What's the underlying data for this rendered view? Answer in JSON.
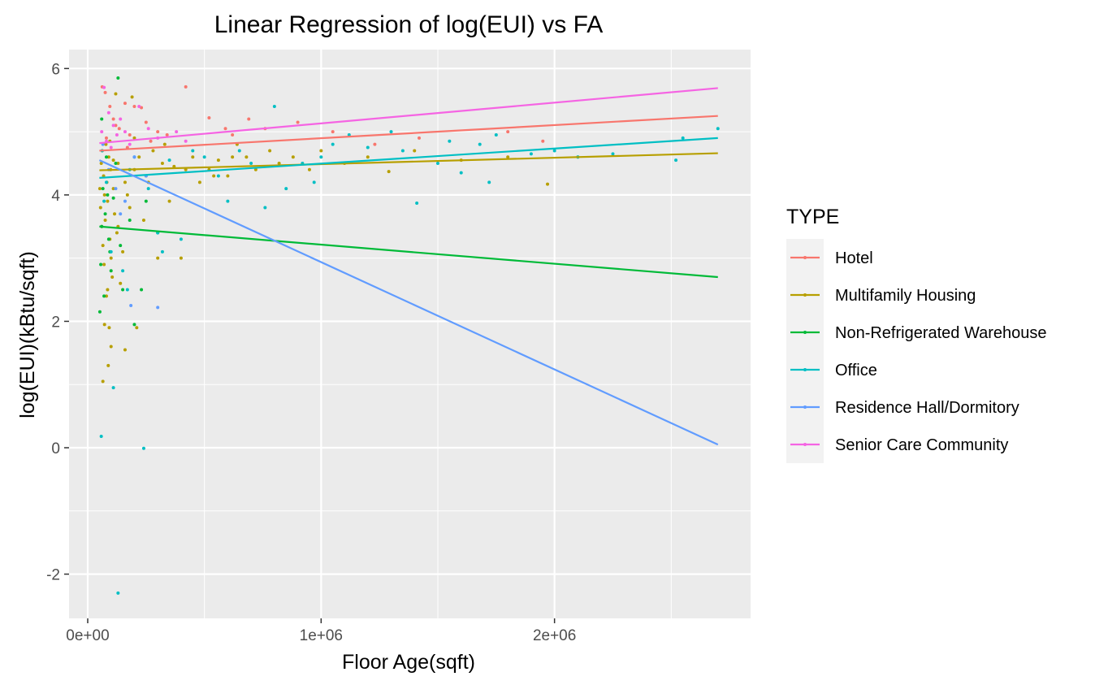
{
  "chart_data": {
    "type": "scatter",
    "title": "Linear Regression of log(EUI) vs FA",
    "xlabel": "Floor Age(sqft)",
    "ylabel": "log(EUI)(kBtu/sqft)",
    "xlim": [
      -80000,
      2840000
    ],
    "ylim": [
      -2.7,
      6.3
    ],
    "x_ticks": [
      {
        "value": 0,
        "label": "0e+00"
      },
      {
        "value": 1000000,
        "label": "1e+06"
      },
      {
        "value": 2000000,
        "label": "2e+06"
      }
    ],
    "y_ticks": [
      {
        "value": -2,
        "label": "-2"
      },
      {
        "value": 0,
        "label": "0"
      },
      {
        "value": 2,
        "label": "2"
      },
      {
        "value": 4,
        "label": "4"
      },
      {
        "value": 6,
        "label": "6"
      }
    ],
    "grid": true,
    "legend": {
      "title": "TYPE",
      "position": "right"
    },
    "series": [
      {
        "name": "Hotel",
        "color": "#F8766D",
        "fit": {
          "x0": 50000,
          "y0": 4.7,
          "x1": 2700000,
          "y1": 5.25
        },
        "points": [
          [
            62000,
            5.71
          ],
          [
            75000,
            5.62
          ],
          [
            95000,
            5.4
          ],
          [
            110000,
            5.2
          ],
          [
            135000,
            5.05
          ],
          [
            160000,
            5.45
          ],
          [
            200000,
            5.4
          ],
          [
            230000,
            5.38
          ],
          [
            180000,
            4.95
          ],
          [
            250000,
            5.15
          ],
          [
            300000,
            5.0
          ],
          [
            340000,
            4.95
          ],
          [
            420000,
            5.71
          ],
          [
            520000,
            5.22
          ],
          [
            590000,
            5.05
          ],
          [
            620000,
            4.95
          ],
          [
            690000,
            5.2
          ],
          [
            760000,
            5.05
          ],
          [
            900000,
            5.15
          ],
          [
            1050000,
            5.0
          ],
          [
            1230000,
            4.8
          ],
          [
            1420000,
            4.9
          ],
          [
            1800000,
            5.0
          ],
          [
            1950000,
            4.85
          ],
          [
            80000,
            4.9
          ],
          [
            120000,
            5.1
          ],
          [
            170000,
            4.75
          ],
          [
            270000,
            4.85
          ]
        ]
      },
      {
        "name": "Multifamily Housing",
        "color": "#B79F00",
        "fit": {
          "x0": 50000,
          "y0": 4.39,
          "x1": 2700000,
          "y1": 4.66
        },
        "points": [
          [
            52000,
            4.1
          ],
          [
            55000,
            3.8
          ],
          [
            58000,
            4.5
          ],
          [
            60000,
            3.5
          ],
          [
            62000,
            4.7
          ],
          [
            65000,
            3.2
          ],
          [
            68000,
            4.3
          ],
          [
            70000,
            2.9
          ],
          [
            72000,
            4.0
          ],
          [
            75000,
            3.6
          ],
          [
            78000,
            4.8
          ],
          [
            80000,
            2.4
          ],
          [
            82000,
            4.2
          ],
          [
            85000,
            3.9
          ],
          [
            88000,
            1.3
          ],
          [
            90000,
            4.6
          ],
          [
            92000,
            1.9
          ],
          [
            95000,
            3.3
          ],
          [
            98000,
            4.4
          ],
          [
            100000,
            1.6
          ],
          [
            105000,
            2.7
          ],
          [
            110000,
            4.1
          ],
          [
            115000,
            3.7
          ],
          [
            120000,
            5.6
          ],
          [
            125000,
            3.4
          ],
          [
            130000,
            4.5
          ],
          [
            140000,
            2.6
          ],
          [
            150000,
            3.1
          ],
          [
            160000,
            1.55
          ],
          [
            170000,
            4.0
          ],
          [
            180000,
            3.8
          ],
          [
            190000,
            5.55
          ],
          [
            200000,
            4.4
          ],
          [
            210000,
            1.9
          ],
          [
            220000,
            4.6
          ],
          [
            240000,
            3.6
          ],
          [
            250000,
            4.3
          ],
          [
            280000,
            4.7
          ],
          [
            300000,
            3.0
          ],
          [
            320000,
            4.5
          ],
          [
            350000,
            3.9
          ],
          [
            400000,
            3.0
          ],
          [
            420000,
            4.4
          ],
          [
            450000,
            4.6
          ],
          [
            480000,
            4.2
          ],
          [
            520000,
            4.4
          ],
          [
            560000,
            4.55
          ],
          [
            600000,
            4.3
          ],
          [
            640000,
            4.8
          ],
          [
            680000,
            4.6
          ],
          [
            720000,
            4.4
          ],
          [
            780000,
            4.7
          ],
          [
            820000,
            4.5
          ],
          [
            880000,
            4.6
          ],
          [
            950000,
            4.4
          ],
          [
            1000000,
            4.7
          ],
          [
            1100000,
            4.5
          ],
          [
            1200000,
            4.6
          ],
          [
            1290000,
            4.37
          ],
          [
            1400000,
            4.7
          ],
          [
            1600000,
            4.55
          ],
          [
            1800000,
            4.6
          ],
          [
            1970000,
            4.17
          ],
          [
            2100000,
            4.6
          ],
          [
            65000,
            1.05
          ],
          [
            72000,
            1.95
          ],
          [
            85000,
            2.5
          ],
          [
            100000,
            3.0
          ],
          [
            130000,
            3.5
          ],
          [
            200000,
            4.9
          ],
          [
            260000,
            4.2
          ],
          [
            330000,
            4.8
          ],
          [
            370000,
            4.45
          ],
          [
            540000,
            4.3
          ],
          [
            620000,
            4.6
          ],
          [
            160000,
            4.2
          ],
          [
            95000,
            4.85
          ],
          [
            110000,
            4.55
          ]
        ]
      },
      {
        "name": "Non-Refrigerated Warehouse",
        "color": "#00BA38",
        "fit": {
          "x0": 50000,
          "y0": 3.5,
          "x1": 2700000,
          "y1": 2.7
        },
        "points": [
          [
            52000,
            2.15
          ],
          [
            56000,
            2.9
          ],
          [
            60000,
            3.5
          ],
          [
            65000,
            4.1
          ],
          [
            70000,
            2.4
          ],
          [
            75000,
            3.7
          ],
          [
            80000,
            4.6
          ],
          [
            90000,
            3.3
          ],
          [
            100000,
            2.8
          ],
          [
            110000,
            3.95
          ],
          [
            120000,
            4.5
          ],
          [
            130000,
            5.85
          ],
          [
            140000,
            3.2
          ],
          [
            150000,
            2.5
          ],
          [
            180000,
            3.6
          ],
          [
            200000,
            1.95
          ],
          [
            230000,
            2.5
          ],
          [
            250000,
            3.9
          ],
          [
            300000,
            3.4
          ],
          [
            60000,
            5.2
          ],
          [
            85000,
            4.0
          ],
          [
            95000,
            3.1
          ]
        ]
      },
      {
        "name": "Office",
        "color": "#00BFC4",
        "fit": {
          "x0": 50000,
          "y0": 4.27,
          "x1": 2700000,
          "y1": 4.9
        },
        "points": [
          [
            58000,
            0.18
          ],
          [
            62000,
            4.7
          ],
          [
            70000,
            3.9
          ],
          [
            80000,
            4.2
          ],
          [
            100000,
            3.1
          ],
          [
            110000,
            0.95
          ],
          [
            130000,
            -2.3
          ],
          [
            150000,
            2.8
          ],
          [
            170000,
            2.5
          ],
          [
            200000,
            4.6
          ],
          [
            240000,
            -0.01
          ],
          [
            300000,
            3.4
          ],
          [
            320000,
            3.1
          ],
          [
            400000,
            3.3
          ],
          [
            450000,
            4.7
          ],
          [
            500000,
            4.6
          ],
          [
            560000,
            4.3
          ],
          [
            600000,
            3.9
          ],
          [
            650000,
            4.7
          ],
          [
            700000,
            4.5
          ],
          [
            760000,
            3.8
          ],
          [
            800000,
            5.4
          ],
          [
            850000,
            4.1
          ],
          [
            920000,
            4.5
          ],
          [
            970000,
            4.2
          ],
          [
            1000000,
            4.6
          ],
          [
            1050000,
            4.8
          ],
          [
            1120000,
            4.95
          ],
          [
            1200000,
            4.75
          ],
          [
            1300000,
            5.0
          ],
          [
            1350000,
            4.7
          ],
          [
            1410000,
            3.87
          ],
          [
            1500000,
            4.5
          ],
          [
            1600000,
            4.35
          ],
          [
            1680000,
            4.8
          ],
          [
            1720000,
            4.2
          ],
          [
            1900000,
            4.65
          ],
          [
            2100000,
            4.6
          ],
          [
            2250000,
            4.65
          ],
          [
            2520000,
            4.55
          ],
          [
            2550000,
            4.9
          ],
          [
            2700000,
            5.05
          ],
          [
            1550000,
            4.85
          ],
          [
            1750000,
            4.95
          ],
          [
            2000000,
            4.7
          ],
          [
            180000,
            4.4
          ],
          [
            260000,
            4.1
          ],
          [
            350000,
            4.55
          ]
        ]
      },
      {
        "name": "Residence Hall/Dormitory",
        "color": "#619CFF",
        "fit": {
          "x0": 50000,
          "y0": 4.55,
          "x1": 2700000,
          "y1": 0.05
        },
        "points": [
          [
            65000,
            4.8
          ],
          [
            90000,
            4.4
          ],
          [
            120000,
            4.1
          ],
          [
            160000,
            3.9
          ],
          [
            185000,
            2.25
          ],
          [
            200000,
            4.6
          ],
          [
            300000,
            2.22
          ],
          [
            250000,
            4.3
          ],
          [
            140000,
            3.7
          ]
        ]
      },
      {
        "name": "Senior Care Community",
        "color": "#F564E3",
        "fit": {
          "x0": 50000,
          "y0": 4.82,
          "x1": 2700000,
          "y1": 5.69
        },
        "points": [
          [
            60000,
            5.0
          ],
          [
            70000,
            5.7
          ],
          [
            80000,
            4.85
          ],
          [
            90000,
            5.3
          ],
          [
            100000,
            4.75
          ],
          [
            110000,
            5.1
          ],
          [
            125000,
            4.95
          ],
          [
            140000,
            5.2
          ],
          [
            160000,
            5.0
          ],
          [
            180000,
            4.8
          ],
          [
            220000,
            5.4
          ],
          [
            260000,
            5.05
          ],
          [
            300000,
            4.9
          ],
          [
            380000,
            5.0
          ],
          [
            420000,
            4.85
          ]
        ]
      }
    ]
  }
}
